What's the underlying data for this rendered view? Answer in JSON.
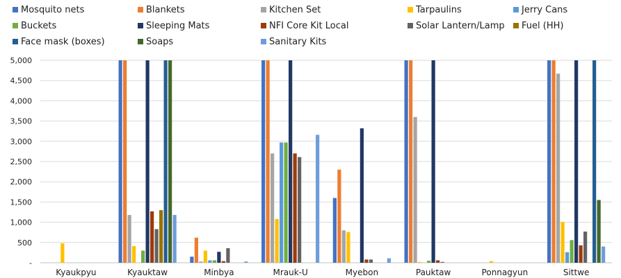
{
  "chart_data": {
    "type": "bar",
    "title": "",
    "xlabel": "",
    "ylabel": "",
    "ylim": [
      0,
      5000
    ],
    "yticks": [
      0,
      500,
      1000,
      1500,
      2000,
      2500,
      3000,
      3500,
      4000,
      4500,
      5000
    ],
    "ytick_labels": [
      "-",
      "500",
      "1,000",
      "1,500",
      "2,000",
      "2,500",
      "3,000",
      "3,500",
      "4,000",
      "4,500",
      "5,000"
    ],
    "grid": true,
    "legend_position": "top",
    "categories": [
      "Kyaukpyu",
      "Kyauktaw",
      "Minbya",
      "Mrauk-U",
      "Myebon",
      "Pauktaw",
      "Ponnagyun",
      "Sittwe"
    ],
    "series": [
      {
        "name": "Mosquito nets",
        "color": "#4472c4",
        "values": [
          0,
          5000,
          150,
          5000,
          1600,
          5000,
          0,
          5000
        ]
      },
      {
        "name": "Blankets",
        "color": "#ed7d31",
        "values": [
          0,
          5000,
          620,
          5000,
          2300,
          5000,
          0,
          5000
        ]
      },
      {
        "name": "Kitchen Set",
        "color": "#a5a5a5",
        "values": [
          0,
          1180,
          30,
          2700,
          800,
          3600,
          0,
          4670
        ]
      },
      {
        "name": "Tarpaulins",
        "color": "#ffc000",
        "values": [
          480,
          410,
          300,
          1080,
          760,
          20,
          40,
          1010
        ]
      },
      {
        "name": "Jerry Cans",
        "color": "#5b9bd5",
        "values": [
          0,
          0,
          60,
          2970,
          0,
          0,
          0,
          260
        ]
      },
      {
        "name": "Buckets",
        "color": "#70ad47",
        "values": [
          0,
          300,
          60,
          2970,
          0,
          50,
          0,
          560
        ]
      },
      {
        "name": "Sleeping Mats",
        "color": "#203864",
        "values": [
          0,
          5000,
          270,
          5000,
          3320,
          5000,
          0,
          5000
        ]
      },
      {
        "name": "NFI Core Kit Local",
        "color": "#9e3a0b",
        "values": [
          0,
          1270,
          40,
          2700,
          80,
          60,
          0,
          430
        ]
      },
      {
        "name": "Solar Lantern/Lamp",
        "color": "#636363",
        "values": [
          0,
          830,
          360,
          2610,
          80,
          20,
          0,
          770
        ]
      },
      {
        "name": "Fuel (HH)",
        "color": "#997300",
        "values": [
          0,
          1300,
          0,
          0,
          0,
          0,
          0,
          0
        ]
      },
      {
        "name": "Face mask (boxes)",
        "color": "#255e91",
        "values": [
          0,
          5000,
          0,
          0,
          0,
          0,
          0,
          5000
        ]
      },
      {
        "name": "Soaps",
        "color": "#43682b",
        "values": [
          0,
          5000,
          0,
          0,
          0,
          0,
          0,
          1550
        ]
      },
      {
        "name": "Sanitary Kits",
        "color": "#6f9ddb",
        "values": [
          0,
          1180,
          30,
          3160,
          110,
          0,
          0,
          400
        ]
      }
    ]
  }
}
